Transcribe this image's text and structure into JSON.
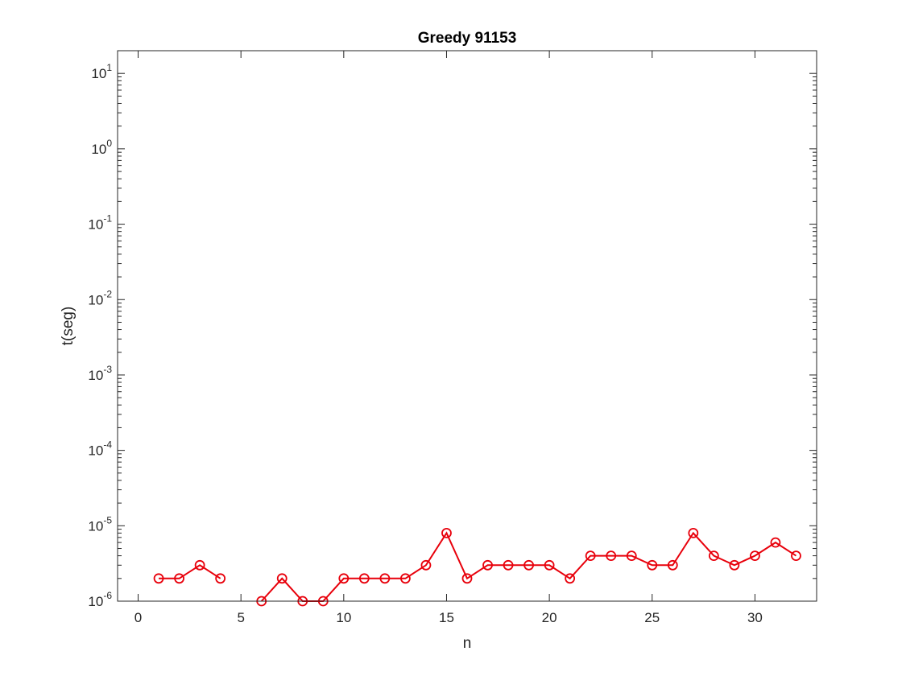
{
  "chart_data": {
    "type": "line",
    "title": "Greedy 91153",
    "xlabel": "n",
    "ylabel": "t(seg)",
    "xlim": [
      -1,
      33
    ],
    "ylim": [
      1e-06,
      20
    ],
    "yscale": "log",
    "grid": false,
    "x_ticks": [
      "0",
      "5",
      "10",
      "15",
      "20",
      "25",
      "30"
    ],
    "x_tick_values": [
      0,
      5,
      10,
      15,
      20,
      25,
      30
    ],
    "y_ticks": [
      {
        "base": "10",
        "exp": "-6",
        "value": 1e-06
      },
      {
        "base": "10",
        "exp": "-5",
        "value": 1e-05
      },
      {
        "base": "10",
        "exp": "-4",
        "value": 0.0001
      },
      {
        "base": "10",
        "exp": "-3",
        "value": 0.001
      },
      {
        "base": "10",
        "exp": "-2",
        "value": 0.01
      },
      {
        "base": "10",
        "exp": "-1",
        "value": 0.1
      },
      {
        "base": "10",
        "exp": "0",
        "value": 1
      },
      {
        "base": "10",
        "exp": "1",
        "value": 10
      }
    ],
    "series": [
      {
        "color": "#e8000b",
        "marker": "circle",
        "x": [
          1,
          2,
          3,
          4,
          5,
          6,
          7,
          8,
          9,
          10,
          11,
          12,
          13,
          14,
          15,
          16,
          17,
          18,
          19,
          20,
          21,
          22,
          23,
          24,
          25,
          26,
          27,
          28,
          29,
          30,
          31,
          32
        ],
        "y": [
          2e-06,
          2e-06,
          3e-06,
          2e-06,
          null,
          1e-06,
          2e-06,
          1e-06,
          1e-06,
          2e-06,
          2e-06,
          2e-06,
          2e-06,
          3e-06,
          8e-06,
          2e-06,
          3e-06,
          3e-06,
          3e-06,
          3e-06,
          2e-06,
          4e-06,
          4e-06,
          4e-06,
          3e-06,
          3e-06,
          8e-06,
          4e-06,
          3e-06,
          4e-06,
          6e-06,
          4e-06
        ]
      }
    ]
  }
}
